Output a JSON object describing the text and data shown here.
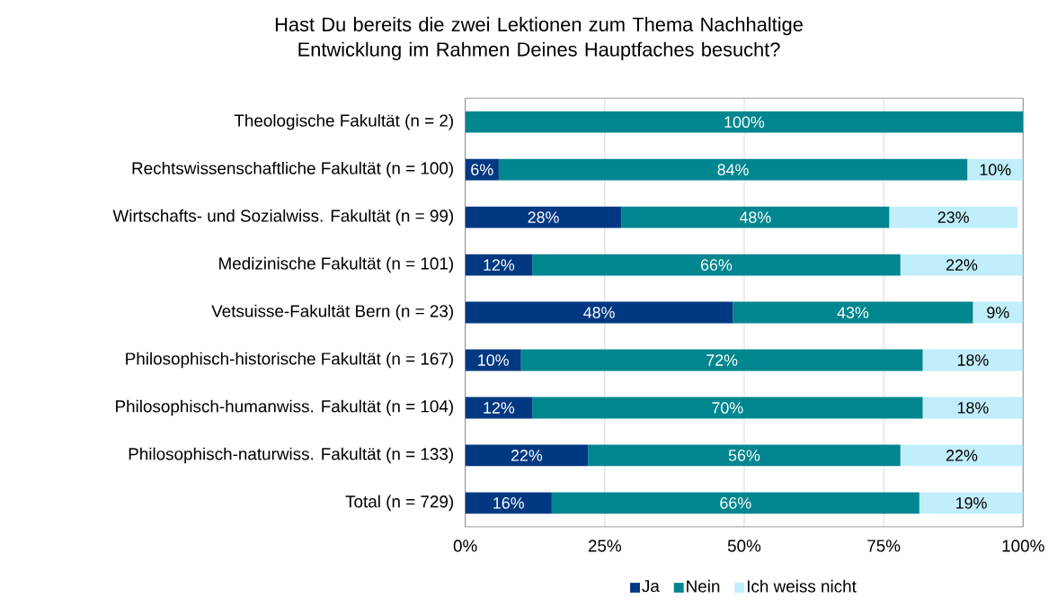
{
  "chart_data": {
    "type": "bar",
    "orientation": "horizontal",
    "stacked": true,
    "title": "Hast Du bereits die zwei Lektionen zum Thema Nachhaltige Entwicklung im Rahmen Deines Hauptfaches besucht?",
    "categories": [
      "Theologische Fakultät (n = 2)",
      "Rechtswissenschaftliche Fakultät (n = 100)",
      "Wirtschafts- und Sozialwiss. Fakultät (n = 99)",
      "Medizinische Fakultät (n = 101)",
      "Vetsuisse-Fakultät Bern (n = 23)",
      "Philosophisch-historische Fakultät (n = 167)",
      "Philosophisch-humanwiss. Fakultät (n = 104)",
      "Philosophisch-naturwiss. Fakultät (n = 133)",
      "Total (n = 729)"
    ],
    "series": [
      {
        "name": "Ja",
        "color": "#003882",
        "values": [
          0,
          6,
          28,
          12,
          48,
          10,
          12,
          22,
          15.5
        ],
        "value_labels": [
          null,
          "6%",
          "28%",
          "12%",
          "48%",
          "10%",
          "12%",
          "22%",
          "16%"
        ]
      },
      {
        "name": "Nein",
        "color": "#00868f",
        "values": [
          100,
          84,
          48,
          66,
          43,
          72,
          70,
          56,
          65.9
        ],
        "value_labels": [
          "100%",
          "84%",
          "48%",
          "66%",
          "43%",
          "72%",
          "70%",
          "56%",
          "66%"
        ]
      },
      {
        "name": "Ich weiss nicht",
        "color": "#c0eefa",
        "values": [
          0,
          10,
          23,
          22,
          9,
          18,
          18,
          22,
          18.6
        ],
        "value_labels": [
          null,
          "10%",
          "23%",
          "22%",
          "9%",
          "18%",
          "18%",
          "22%",
          "19%"
        ]
      }
    ],
    "xlim": [
      0,
      100
    ],
    "xticks": [
      {
        "value": 0,
        "label": "0%"
      },
      {
        "value": 25,
        "label": "25%"
      },
      {
        "value": 50,
        "label": "50%"
      },
      {
        "value": 75,
        "label": "75%"
      },
      {
        "value": 100,
        "label": "100%"
      }
    ],
    "grid": "x",
    "legend": "bottom"
  }
}
